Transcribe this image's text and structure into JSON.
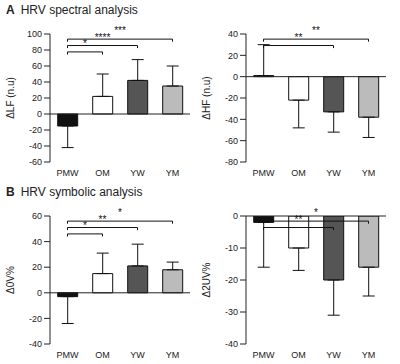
{
  "sections": [
    {
      "label": "A",
      "title": "HRV spectral analysis"
    },
    {
      "label": "B",
      "title": "HRV symbolic analysis"
    }
  ],
  "chart_data": [
    {
      "type": "bar",
      "y_label": "ΔLF (n.u)",
      "categories": [
        "PMW",
        "OM",
        "YW",
        "YM"
      ],
      "values": [
        -15,
        22,
        42,
        35
      ],
      "errors": [
        27,
        28,
        26,
        25
      ],
      "colors": [
        "#111111",
        "#ffffff",
        "#555555",
        "#bbbbbb"
      ],
      "ylim": [
        -60,
        100
      ],
      "yticks": [
        -60,
        -40,
        -20,
        0,
        20,
        40,
        60,
        80,
        100
      ],
      "significance": [
        {
          "from": "PMW",
          "to": "OM",
          "label": "*"
        },
        {
          "from": "PMW",
          "to": "YW",
          "label": "****"
        },
        {
          "from": "PMW",
          "to": "YM",
          "label": "***"
        }
      ]
    },
    {
      "type": "bar",
      "y_label": "ΔHF (n.u)",
      "categories": [
        "PMW",
        "OM",
        "YW",
        "YM"
      ],
      "values": [
        1,
        -22,
        -33,
        -38
      ],
      "errors": [
        29,
        26,
        19,
        19
      ],
      "colors": [
        "#111111",
        "#ffffff",
        "#555555",
        "#bbbbbb"
      ],
      "ylim": [
        -80,
        40
      ],
      "yticks": [
        -80,
        -60,
        -40,
        -20,
        0,
        20,
        40
      ],
      "significance": [
        {
          "from": "PMW",
          "to": "YW",
          "label": "**"
        },
        {
          "from": "PMW",
          "to": "YM",
          "label": "**"
        }
      ]
    },
    {
      "type": "bar",
      "y_label": "Δ0V%",
      "categories": [
        "PMW",
        "OM",
        "YW",
        "YM"
      ],
      "values": [
        -3,
        15,
        21,
        18
      ],
      "errors": [
        21,
        16,
        17,
        6
      ],
      "colors": [
        "#111111",
        "#ffffff",
        "#555555",
        "#bbbbbb"
      ],
      "ylim": [
        -40,
        60
      ],
      "yticks": [
        -40,
        -20,
        0,
        20,
        40,
        60
      ],
      "significance": [
        {
          "from": "PMW",
          "to": "OM",
          "label": "*"
        },
        {
          "from": "PMW",
          "to": "YW",
          "label": "**"
        },
        {
          "from": "PMW",
          "to": "YM",
          "label": "*"
        }
      ]
    },
    {
      "type": "bar",
      "y_label": "Δ2UV%",
      "categories": [
        "PMW",
        "OM",
        "YW",
        "YM"
      ],
      "values": [
        -2,
        -10,
        -20,
        -16
      ],
      "errors": [
        14,
        7,
        11,
        9
      ],
      "colors": [
        "#111111",
        "#ffffff",
        "#555555",
        "#bbbbbb"
      ],
      "ylim": [
        -40,
        0
      ],
      "yticks": [
        -40,
        -30,
        -20,
        -10,
        0
      ],
      "significance": [
        {
          "from": "PMW",
          "to": "YW",
          "label": "**"
        },
        {
          "from": "PMW",
          "to": "YM",
          "label": "*"
        }
      ]
    }
  ]
}
